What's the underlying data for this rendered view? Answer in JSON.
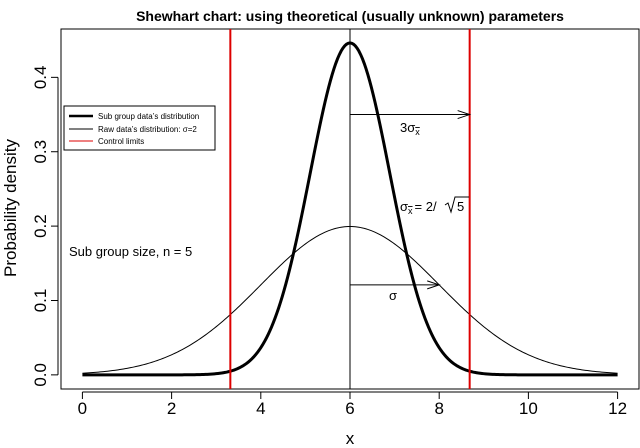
{
  "chart_data": {
    "type": "line",
    "title": "Shewhart chart: using theoretical (usually unknown) parameters",
    "xlabel": "x",
    "ylabel": "Probability density",
    "xlim": [
      -0.48,
      12.48
    ],
    "ylim": [
      -0.019,
      0.465
    ],
    "x_ticks": [
      0,
      2,
      4,
      6,
      8,
      10,
      12
    ],
    "y_ticks": [
      0.0,
      0.1,
      0.2,
      0.3,
      0.4
    ],
    "x_tick_labels": [
      "0",
      "2",
      "4",
      "6",
      "8",
      "10",
      "12"
    ],
    "y_tick_labels": [
      "0.0",
      "0.1",
      "0.2",
      "0.3",
      "0.4"
    ],
    "mean": 6,
    "sigma": 2,
    "n": 5,
    "sigma_xbar": 0.894,
    "x_range": [
      0,
      12
    ],
    "series": [
      {
        "name": "Sub group data's distribution",
        "distribution": "normal",
        "mean": 6,
        "sd": 0.894,
        "color": "#000000",
        "width": "thick"
      },
      {
        "name": "Raw data's distribution: σ=2",
        "distribution": "normal",
        "mean": 6,
        "sd": 2,
        "color": "#000000",
        "width": "thin"
      }
    ],
    "control_limits": {
      "name": "Control limits",
      "values": [
        3.317,
        8.683
      ],
      "color": "#dd0000"
    },
    "center_line": 6,
    "annotations": {
      "three_sigma_xbar": {
        "prefix": "3",
        "symbol": "σ",
        "sub": "x",
        "arrow_from": [
          6,
          0.35
        ],
        "arrow_to": [
          8.683,
          0.35
        ]
      },
      "sigma_xbar_formula": {
        "symbol": "σ",
        "sub": "x",
        "rhs": "= 2/",
        "radicand": "5"
      },
      "sigma_raw": {
        "text": "σ",
        "arrow_from": [
          6,
          0.121
        ],
        "arrow_to": [
          8,
          0.121
        ]
      },
      "subgroup_size": "Sub group size, n = 5"
    },
    "legend": {
      "position": "top-left",
      "entries": [
        {
          "label": "Sub group data’s distribution",
          "color": "#000000",
          "style": "thick"
        },
        {
          "label": "Raw data’s distribution: σ=2",
          "color": "#000000",
          "style": "thin"
        },
        {
          "label": "Control limits",
          "color": "#dd0000",
          "style": "thin"
        }
      ]
    }
  }
}
